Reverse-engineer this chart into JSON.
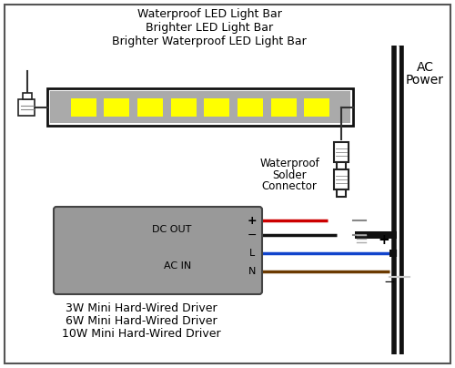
{
  "title_lines": [
    "Waterproof LED Light Bar",
    "Brighter LED Light Bar",
    "Brighter Waterproof LED Light Bar"
  ],
  "driver_labels": [
    "DC OUT",
    "AC IN"
  ],
  "driver_terminals": [
    "+",
    "−",
    "L",
    "N"
  ],
  "driver_sub_labels": [
    "3W Mini Hard-Wired Driver",
    "6W Mini Hard-Wired Driver",
    "10W Mini Hard-Wired Driver"
  ],
  "connector_label": [
    "Waterproof",
    "Solder",
    "Connector"
  ],
  "ac_power_label": [
    "AC",
    "Power"
  ],
  "wire_colors": [
    "#cc0000",
    "#111111",
    "#1144cc",
    "#6b3a00"
  ],
  "led_color": "#ffff00",
  "led_bar_fill": "#aaaaaa",
  "driver_box_color": "#999999",
  "bg_color": "#ffffff",
  "num_leds": 8,
  "plus_label": "+",
  "minus_label": "−"
}
